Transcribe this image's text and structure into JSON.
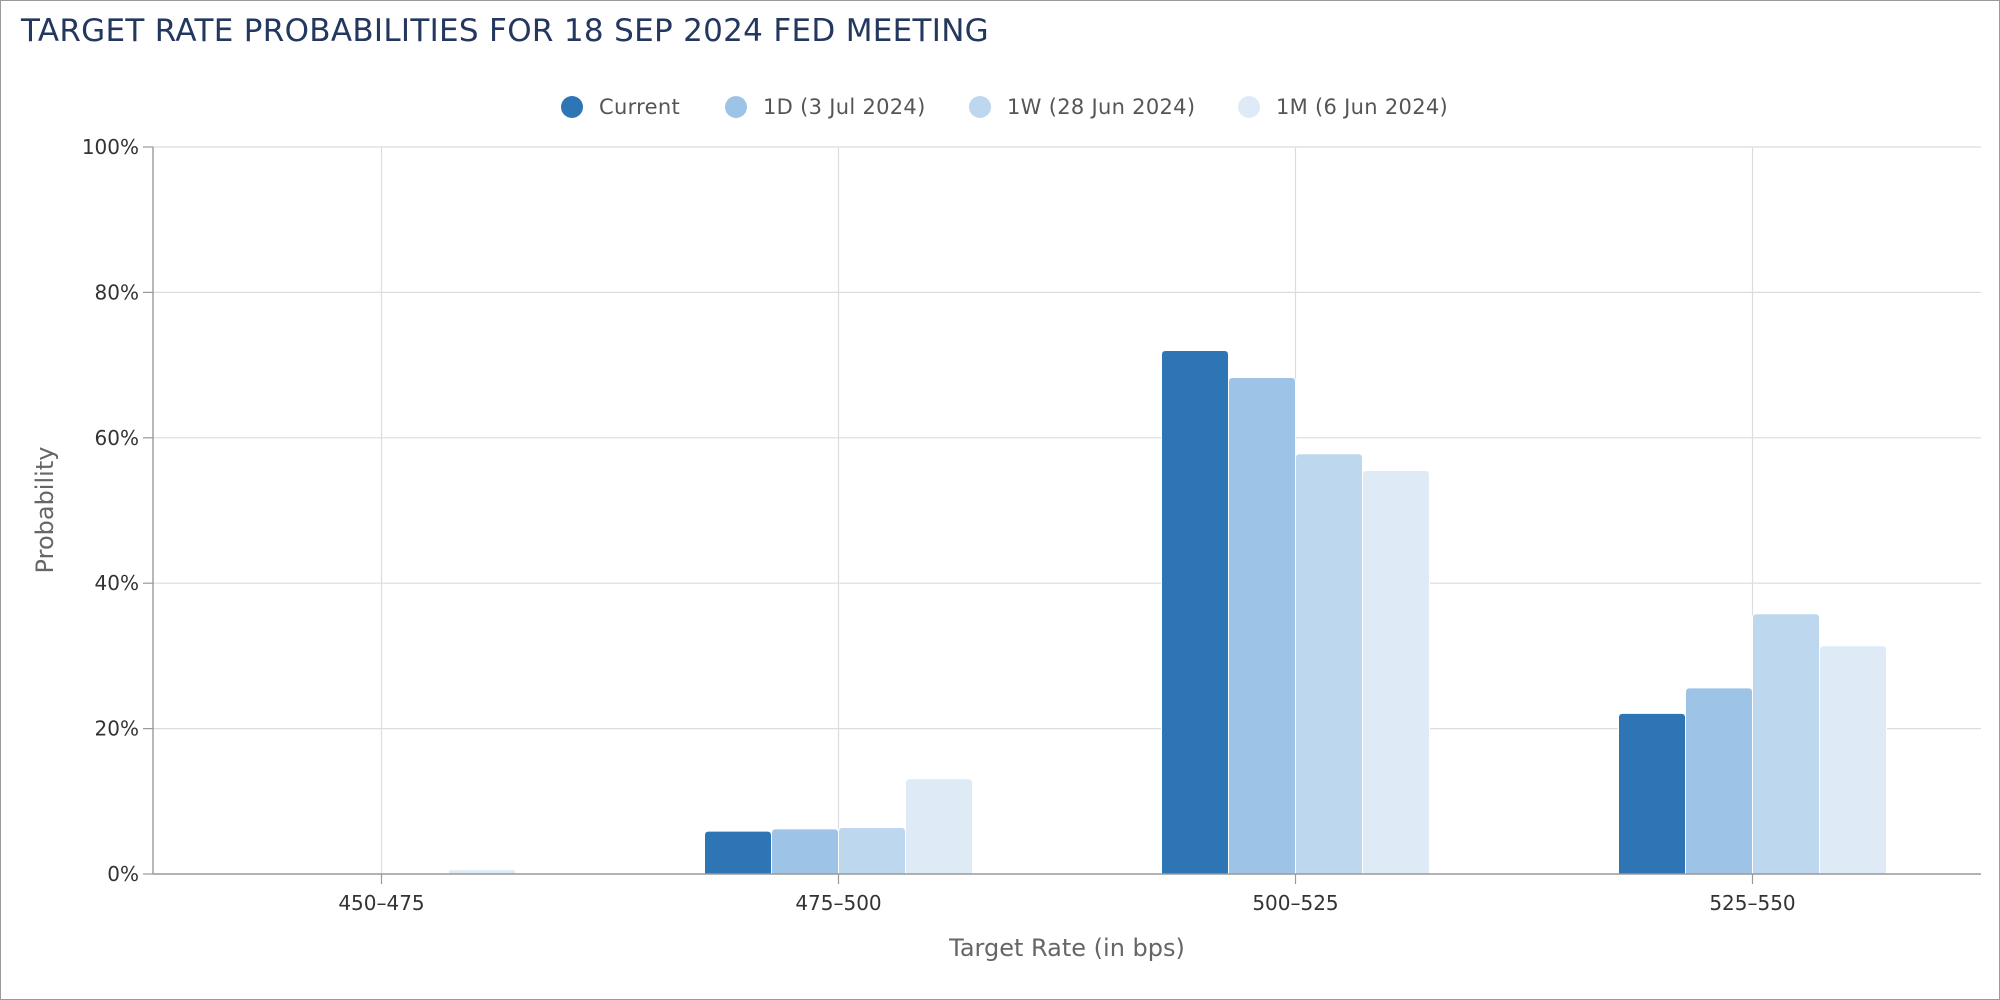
{
  "chart_data": {
    "type": "bar",
    "title": "TARGET RATE PROBABILITIES FOR 18 SEP 2024 FED MEETING",
    "xlabel": "Target Rate (in bps)",
    "ylabel": "Probability",
    "categories": [
      "450–475",
      "475–500",
      "500–525",
      "525–550"
    ],
    "ylim": [
      0,
      100
    ],
    "yticks": [
      "0%",
      "20%",
      "40%",
      "60%",
      "80%",
      "100%"
    ],
    "yticks_values": [
      0,
      20,
      40,
      60,
      80,
      100
    ],
    "grid": true,
    "legend_position": "top-center",
    "series": [
      {
        "name": "Current",
        "color": "#2e75b6",
        "values": [
          0,
          5.9,
          72.0,
          22.1
        ]
      },
      {
        "name": "1D (3 Jul 2024)",
        "color": "#9dc3e6",
        "values": [
          0,
          6.2,
          68.3,
          25.6
        ]
      },
      {
        "name": "1W (28 Jun 2024)",
        "color": "#bdd7ee",
        "values": [
          0,
          6.4,
          57.8,
          35.8
        ]
      },
      {
        "name": "1M (6 Jun 2024)",
        "color": "#deebf7",
        "values": [
          0.6,
          13.1,
          55.5,
          31.4
        ]
      }
    ]
  }
}
